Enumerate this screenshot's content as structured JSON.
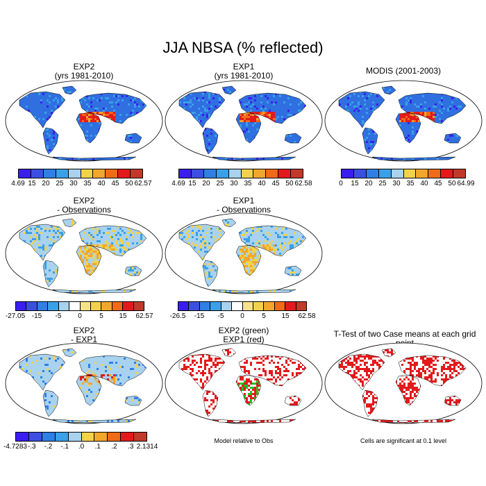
{
  "title": "JJA NBSA (% reflected)",
  "panels": [
    {
      "line1": "EXP2",
      "line2": "(yrs 1981-2010)"
    },
    {
      "line1": "EXP1",
      "line2": "(yrs 1981-2010)"
    },
    {
      "line1": "MODIS (2001-2003)",
      "line2": ""
    },
    {
      "line1": "EXP2",
      "line2": "- Observations"
    },
    {
      "line1": "EXP1",
      "line2": "- Observations"
    },
    {
      "line1": "EXP2",
      "line2": "- EXP1"
    },
    {
      "line1": "EXP2 (green)",
      "line2": "EXP1 (red)"
    },
    {
      "line1": "T-Test of two Case means at each grid point",
      "line2": ""
    }
  ],
  "colorbars": [
    {
      "labels": [
        "4.69",
        "15",
        "20",
        "25",
        "30",
        "35",
        "40",
        "45",
        "50",
        "62.57"
      ]
    },
    {
      "labels": [
        "4.69",
        "15",
        "20",
        "25",
        "30",
        "35",
        "40",
        "45",
        "50",
        "62.58"
      ]
    },
    {
      "labels": [
        "0",
        "15",
        "20",
        "25",
        "30",
        "35",
        "40",
        "45",
        "50",
        "64.99"
      ]
    },
    {
      "labels": [
        "-27.05",
        "-15",
        "-5",
        "0",
        "5",
        "15",
        "62.57"
      ]
    },
    {
      "labels": [
        "-26.5",
        "-15",
        "-5",
        "0",
        "5",
        "15",
        "62.58"
      ]
    },
    {
      "labels": [
        "-4.7283",
        "-.3",
        "-.2",
        "-.1",
        ".0",
        ".1",
        ".2",
        ".3",
        "2.1314"
      ]
    }
  ],
  "notes": {
    "model_relative": "Model relative to Obs",
    "significance": "Cells are significant at 0.1 level"
  },
  "palette": [
    "#3a1ef0",
    "#3c4fe0",
    "#2f7fe6",
    "#3aa0e8",
    "#a8d2ee",
    "#f2d24a",
    "#f1a62c",
    "#f06a18",
    "#e31a1c",
    "#c0392b"
  ]
}
